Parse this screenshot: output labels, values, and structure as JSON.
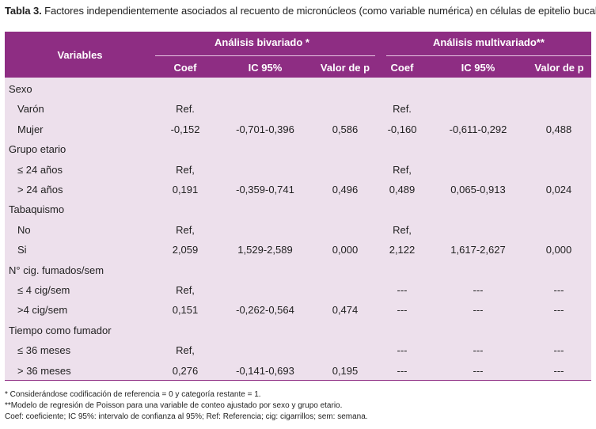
{
  "title": {
    "prefix": "Tabla 3.",
    "text": "Factores independientemente asociados al recuento de micronúcleos (como variable numérica) en células de epitelio bucal."
  },
  "header": {
    "variables": "Variables",
    "group1": "Análisis bivariado *",
    "group2": "Análisis multivariado**",
    "cols": [
      "Coef",
      "IC 95%",
      "Valor de p",
      "Coef",
      "IC 95%",
      "Valor de p"
    ]
  },
  "rows": [
    {
      "label": "Sexo",
      "indent": false,
      "cells": [
        "",
        "",
        "",
        "",
        "",
        ""
      ]
    },
    {
      "label": "Varón",
      "indent": true,
      "cells": [
        "Ref.",
        "",
        "",
        "Ref.",
        "",
        ""
      ]
    },
    {
      "label": "Mujer",
      "indent": true,
      "cells": [
        "-0,152",
        "-0,701-0,396",
        "0,586",
        "-0,160",
        "-0,611-0,292",
        "0,488"
      ]
    },
    {
      "label": "Grupo etario",
      "indent": false,
      "cells": [
        "",
        "",
        "",
        "",
        "",
        ""
      ]
    },
    {
      "label": "≤ 24 años",
      "indent": true,
      "cells": [
        "Ref,",
        "",
        "",
        "Ref,",
        "",
        ""
      ]
    },
    {
      "label": "> 24 años",
      "indent": true,
      "cells": [
        "0,191",
        "-0,359-0,741",
        "0,496",
        "0,489",
        "0,065-0,913",
        "0,024"
      ]
    },
    {
      "label": "Tabaquismo",
      "indent": false,
      "cells": [
        "",
        "",
        "",
        "",
        "",
        ""
      ]
    },
    {
      "label": "No",
      "indent": true,
      "cells": [
        "Ref,",
        "",
        "",
        "Ref,",
        "",
        ""
      ]
    },
    {
      "label": "Si",
      "indent": true,
      "cells": [
        "2,059",
        "1,529-2,589",
        "0,000",
        "2,122",
        "1,617-2,627",
        "0,000"
      ]
    },
    {
      "label": "N° cig. fumados/sem",
      "indent": false,
      "cells": [
        "",
        "",
        "",
        "",
        "",
        ""
      ]
    },
    {
      "label": "≤ 4 cig/sem",
      "indent": true,
      "cells": [
        "Ref,",
        "",
        "",
        "---",
        "---",
        "---"
      ]
    },
    {
      "label": ">4 cig/sem",
      "indent": true,
      "cells": [
        "0,151",
        "-0,262-0,564",
        "0,474",
        "---",
        "---",
        "---"
      ]
    },
    {
      "label": "Tiempo como fumador",
      "indent": false,
      "cells": [
        "",
        "",
        "",
        "",
        "",
        ""
      ]
    },
    {
      "label": "≤ 36 meses",
      "indent": true,
      "cells": [
        "Ref,",
        "",
        "",
        "---",
        "---",
        "---"
      ]
    },
    {
      "label": "> 36 meses",
      "indent": true,
      "cells": [
        "0,276",
        "-0,141-0,693",
        "0,195",
        "---",
        "---",
        "---"
      ]
    }
  ],
  "notes": [
    "* Considerándose codificación de referencia = 0 y categoría restante = 1.",
    "**Modelo de regresión de Poisson para una variable de conteo ajustado por sexo y grupo etario.",
    "Coef: coeficiente; IC 95%: intervalo de confianza al 95%; Ref: Referencia; cig: cigarrillos; sem: semana."
  ],
  "colors": {
    "header_bg": "#8e2d83",
    "body_bg": "#ede0ec"
  }
}
